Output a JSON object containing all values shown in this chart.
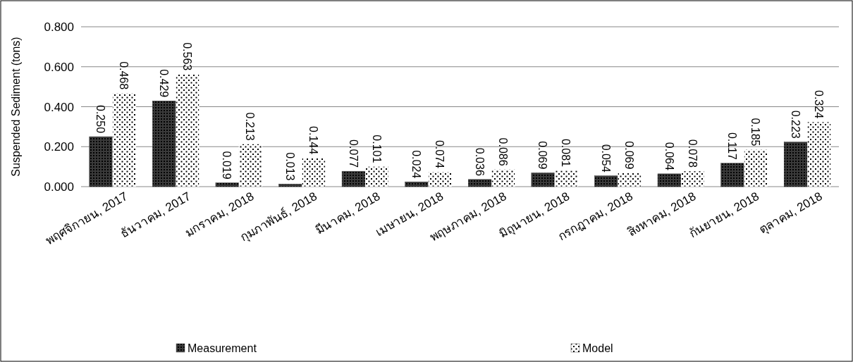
{
  "chart_data": {
    "type": "bar",
    "ylabel": "Suspended Sediment (tons)",
    "categories": [
      "พฤศจิกายน, 2017",
      "ธันวาคม, 2017",
      "มกราคม, 2018",
      "กุมภาพันธ์, 2018",
      "มีนาคม, 2018",
      "เมษายน, 2018",
      "พฤษภาคม, 2018",
      "มิถุนายน, 2018",
      "กรกฎาคม, 2018",
      "สิงหาคม, 2018",
      "กันยายน, 2018",
      "ตุลาคม, 2018"
    ],
    "series": [
      {
        "name": "Measurement",
        "color": "#3a3a3a",
        "values": [
          0.25,
          0.429,
          0.019,
          0.013,
          0.077,
          0.024,
          0.036,
          0.069,
          0.054,
          0.064,
          0.117,
          0.223
        ],
        "value_labels": [
          "0.250",
          "0.429",
          "0.019",
          "0.013",
          "0.077",
          "0.024",
          "0.036",
          "0.069",
          "0.054",
          "0.064",
          "0.117",
          "0.223"
        ]
      },
      {
        "name": "Model",
        "color": "#ffffff",
        "values": [
          0.468,
          0.563,
          0.213,
          0.144,
          0.101,
          0.074,
          0.086,
          0.081,
          0.069,
          0.078,
          0.185,
          0.324
        ],
        "value_labels": [
          "0.468",
          "0.563",
          "0.213",
          "0.144",
          "0.101",
          "0.074",
          "0.086",
          "0.081",
          "0.069",
          "0.078",
          "0.185",
          "0.324"
        ]
      }
    ],
    "ylim": [
      0,
      0.8
    ],
    "yticks": [
      {
        "value": 0,
        "label": "0.000"
      },
      {
        "value": 0.2,
        "label": "0.200"
      },
      {
        "value": 0.4,
        "label": "0.400"
      },
      {
        "value": 0.6,
        "label": "0.600"
      },
      {
        "value": 0.8,
        "label": "0.800"
      }
    ],
    "grid": "y",
    "legend": "bottom"
  }
}
